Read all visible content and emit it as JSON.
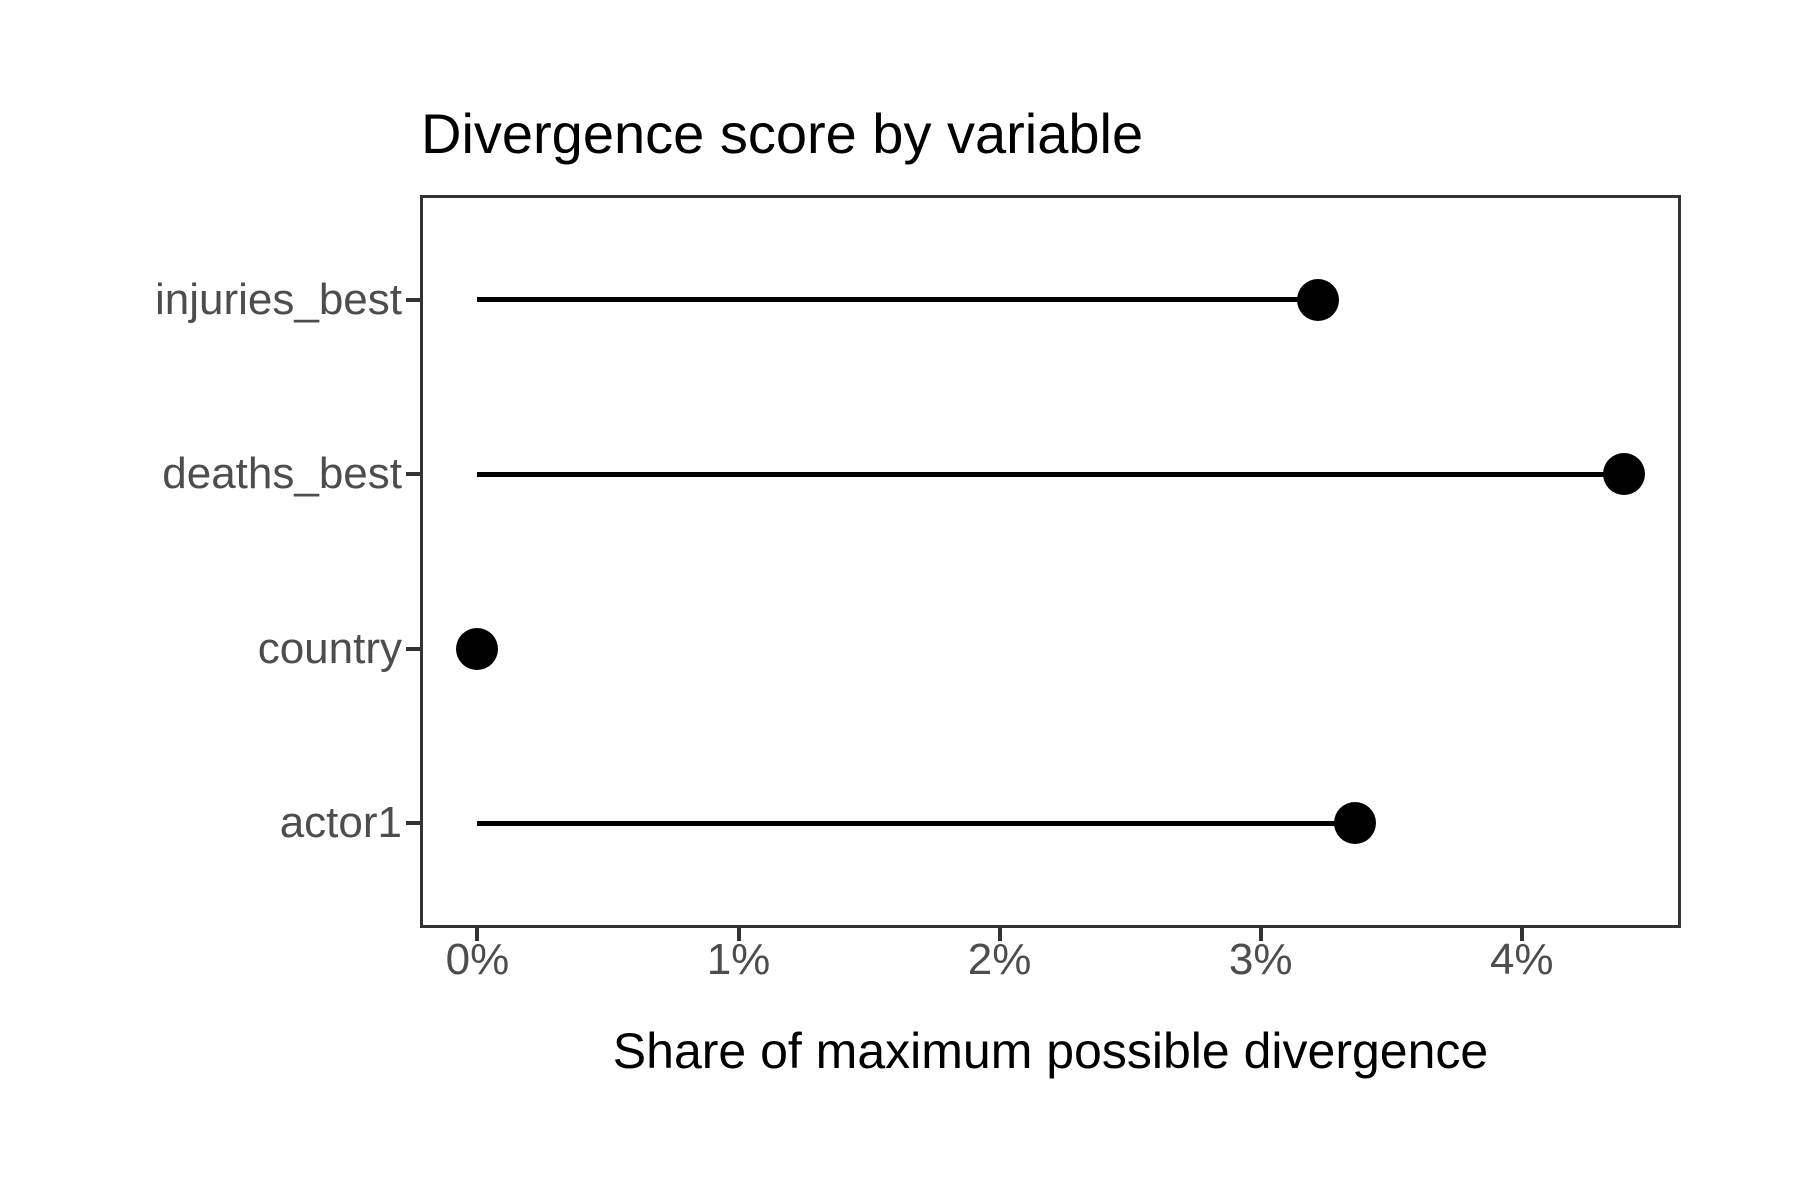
{
  "chart_data": {
    "type": "lollipop",
    "orientation": "horizontal",
    "title": "Divergence score by variable",
    "xlabel": "Share of maximum possible divergence",
    "ylabel": "",
    "categories": [
      "injuries_best",
      "deaths_best",
      "country",
      "actor1"
    ],
    "values": [
      3.22,
      4.39,
      0,
      3.36
    ],
    "value_unit": "percent",
    "x_ticks": {
      "values": [
        0,
        1,
        2,
        3,
        4
      ],
      "labels": [
        "0%",
        "1%",
        "2%",
        "3%",
        "4%"
      ]
    },
    "xlim": [
      -0.22,
      4.61
    ],
    "baseline_value": 0,
    "grid": false,
    "legend": false,
    "colors": {
      "point": "#000000",
      "stem": "#000000",
      "axis_text": "#4d4d4d",
      "title_text": "#000000",
      "panel_border": "#333333",
      "background": "#ffffff"
    }
  }
}
